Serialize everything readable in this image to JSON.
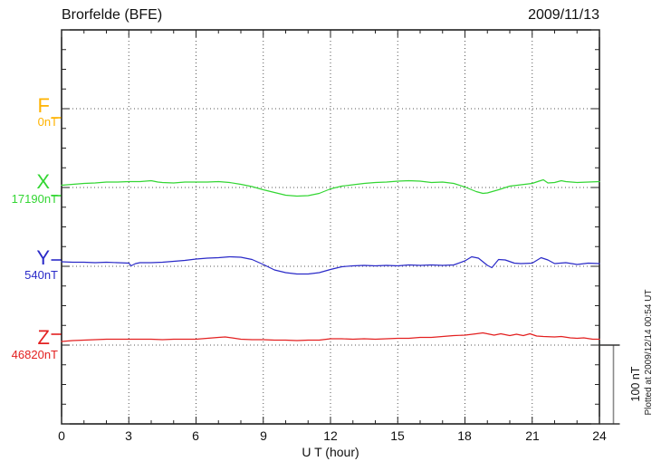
{
  "header": {
    "title": "Brorfelde (BFE)",
    "date": "2009/11/13"
  },
  "x_axis": {
    "label": "U T (hour)",
    "tick_labels": [
      "0",
      "3",
      "6",
      "9",
      "12",
      "15",
      "18",
      "21",
      "24"
    ]
  },
  "chart_data": {
    "type": "line",
    "title": "Brorfelde (BFE)",
    "date": "2009/11/13",
    "xlabel": "U T (hour)",
    "ylabel": "",
    "x_range": [
      0,
      24
    ],
    "x_ticks": [
      0,
      3,
      6,
      9,
      12,
      15,
      18,
      21,
      24
    ],
    "x_minor_tick_step_hours": 1,
    "y_minor_tick_nT": 25,
    "baseline_separation_nT": 100,
    "grid": "dotted vertical lines every 3 hours; dotted horizontal line at each component baseline",
    "legend_position": "left margin, one colored label per component",
    "scale_bar_label": "100 nT",
    "scale_bar_nT": 100,
    "plotted_at": "Plotted at 2009/12/14 00:54 UT",
    "series": [
      {
        "component": "F",
        "base_label": "0nT",
        "base_value_nT": 0,
        "color": "#FFB300",
        "visible_trace": false,
        "points": []
      },
      {
        "component": "X",
        "base_label": "17190nT",
        "base_value_nT": 17190,
        "color": "#33D633",
        "visible_trace": true,
        "points": [
          [
            0,
            2.9
          ],
          [
            0.5,
            4.0
          ],
          [
            1,
            5.2
          ],
          [
            1.5,
            5.7
          ],
          [
            2,
            6.9
          ],
          [
            2.5,
            6.9
          ],
          [
            3,
            7.5
          ],
          [
            3.5,
            7.5
          ],
          [
            4,
            8.6
          ],
          [
            4.3,
            6.9
          ],
          [
            4.5,
            6.3
          ],
          [
            5,
            5.7
          ],
          [
            5.5,
            6.9
          ],
          [
            6,
            6.9
          ],
          [
            6.5,
            6.9
          ],
          [
            7,
            7.5
          ],
          [
            7.5,
            6.3
          ],
          [
            8,
            4.0
          ],
          [
            8.5,
            1.1
          ],
          [
            9,
            -2.9
          ],
          [
            9.5,
            -6.3
          ],
          [
            10,
            -9.8
          ],
          [
            10.5,
            -10.9
          ],
          [
            11,
            -10.3
          ],
          [
            11.5,
            -7.5
          ],
          [
            12,
            -1.7
          ],
          [
            12.5,
            1.7
          ],
          [
            13,
            3.4
          ],
          [
            13.5,
            5.2
          ],
          [
            14,
            6.3
          ],
          [
            14.5,
            6.9
          ],
          [
            15,
            8.0
          ],
          [
            15.5,
            8.6
          ],
          [
            16,
            8.0
          ],
          [
            16.5,
            6.3
          ],
          [
            17,
            6.9
          ],
          [
            17.5,
            5.2
          ],
          [
            18,
            0.6
          ],
          [
            18.5,
            -5.2
          ],
          [
            18.8,
            -7.5
          ],
          [
            19,
            -6.9
          ],
          [
            19.5,
            -2.9
          ],
          [
            20,
            1.7
          ],
          [
            20.5,
            3.4
          ],
          [
            21,
            5.2
          ],
          [
            21.3,
            8.0
          ],
          [
            21.5,
            9.8
          ],
          [
            21.7,
            5.7
          ],
          [
            22,
            6.3
          ],
          [
            22.3,
            8.6
          ],
          [
            22.5,
            7.5
          ],
          [
            23,
            6.3
          ],
          [
            23.5,
            6.9
          ],
          [
            24,
            7.5
          ]
        ]
      },
      {
        "component": "Y",
        "base_label": "540nT",
        "base_value_nT": 540,
        "color": "#2A2AC8",
        "visible_trace": true,
        "points": [
          [
            0,
            5.7
          ],
          [
            0.5,
            5.2
          ],
          [
            1,
            5.2
          ],
          [
            1.5,
            4.6
          ],
          [
            2,
            5.2
          ],
          [
            2.5,
            4.6
          ],
          [
            3,
            4.0
          ],
          [
            3.1,
            0.6
          ],
          [
            3.3,
            3.4
          ],
          [
            3.5,
            4.6
          ],
          [
            4,
            4.6
          ],
          [
            4.5,
            5.2
          ],
          [
            5,
            6.3
          ],
          [
            5.5,
            7.5
          ],
          [
            6,
            9.2
          ],
          [
            6.5,
            10.3
          ],
          [
            7,
            10.9
          ],
          [
            7.5,
            12.1
          ],
          [
            8,
            11.5
          ],
          [
            8.5,
            8.6
          ],
          [
            9,
            2.3
          ],
          [
            9.5,
            -4.6
          ],
          [
            10,
            -8.0
          ],
          [
            10.5,
            -9.8
          ],
          [
            11,
            -9.8
          ],
          [
            11.5,
            -8.0
          ],
          [
            12,
            -4.0
          ],
          [
            12.5,
            -0.6
          ],
          [
            13,
            0.6
          ],
          [
            13.5,
            1.1
          ],
          [
            14,
            0.6
          ],
          [
            14.5,
            1.1
          ],
          [
            15,
            0.6
          ],
          [
            15.5,
            1.7
          ],
          [
            16,
            1.1
          ],
          [
            16.5,
            1.7
          ],
          [
            17,
            1.1
          ],
          [
            17.5,
            1.7
          ],
          [
            18,
            6.9
          ],
          [
            18.3,
            12.1
          ],
          [
            18.6,
            10.3
          ],
          [
            19,
            1.1
          ],
          [
            19.2,
            -1.7
          ],
          [
            19.5,
            8.6
          ],
          [
            19.8,
            8.0
          ],
          [
            20.2,
            4.0
          ],
          [
            20.5,
            3.4
          ],
          [
            21,
            4.0
          ],
          [
            21.4,
            10.9
          ],
          [
            21.7,
            8.0
          ],
          [
            22,
            3.4
          ],
          [
            22.5,
            4.6
          ],
          [
            23,
            2.3
          ],
          [
            23.5,
            4.0
          ],
          [
            24,
            3.4
          ]
        ]
      },
      {
        "component": "Z",
        "base_label": "46820nT",
        "base_value_nT": 46820,
        "color": "#E32020",
        "visible_trace": true,
        "points": [
          [
            0,
            4.6
          ],
          [
            0.5,
            5.7
          ],
          [
            1,
            6.3
          ],
          [
            1.5,
            6.9
          ],
          [
            2,
            7.5
          ],
          [
            3,
            7.5
          ],
          [
            4,
            7.5
          ],
          [
            4.5,
            6.9
          ],
          [
            5,
            7.5
          ],
          [
            6,
            7.5
          ],
          [
            6.5,
            8.6
          ],
          [
            7,
            9.8
          ],
          [
            7.3,
            10.3
          ],
          [
            7.6,
            9.2
          ],
          [
            8,
            7.5
          ],
          [
            8.5,
            6.9
          ],
          [
            9,
            6.9
          ],
          [
            9.5,
            6.3
          ],
          [
            10,
            6.3
          ],
          [
            10.5,
            5.7
          ],
          [
            11,
            6.3
          ],
          [
            11.5,
            6.3
          ],
          [
            12,
            8.0
          ],
          [
            12.5,
            8.0
          ],
          [
            13,
            7.5
          ],
          [
            13.5,
            8.0
          ],
          [
            14,
            7.5
          ],
          [
            14.5,
            8.0
          ],
          [
            15,
            8.6
          ],
          [
            15.5,
            8.6
          ],
          [
            16,
            9.8
          ],
          [
            16.5,
            9.8
          ],
          [
            17,
            10.9
          ],
          [
            17.5,
            12.1
          ],
          [
            18,
            12.6
          ],
          [
            18.5,
            14.4
          ],
          [
            18.8,
            15.5
          ],
          [
            19,
            14.4
          ],
          [
            19.3,
            12.6
          ],
          [
            19.6,
            14.4
          ],
          [
            20,
            12.1
          ],
          [
            20.3,
            13.8
          ],
          [
            20.6,
            12.1
          ],
          [
            20.9,
            14.4
          ],
          [
            21.2,
            11.5
          ],
          [
            21.5,
            10.9
          ],
          [
            22,
            10.3
          ],
          [
            22.3,
            10.9
          ],
          [
            22.7,
            9.2
          ],
          [
            23,
            8.6
          ],
          [
            23.3,
            9.2
          ],
          [
            23.7,
            7.5
          ],
          [
            24,
            7.5
          ]
        ]
      }
    ]
  }
}
